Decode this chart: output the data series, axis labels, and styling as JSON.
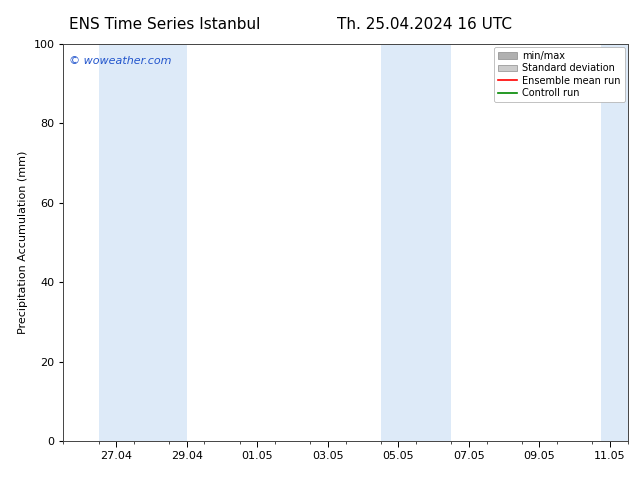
{
  "title_left": "ENS Time Series Istanbul",
  "title_right": "Th. 25.04.2024 16 UTC",
  "ylabel": "Precipitation Accumulation (mm)",
  "ylim": [
    0,
    100
  ],
  "yticks": [
    0,
    20,
    40,
    60,
    80,
    100
  ],
  "watermark": "© woweather.com",
  "background_color": "#ffffff",
  "plot_bg_color": "#ffffff",
  "shaded_band_color": "#ddeaf8",
  "legend_items": [
    {
      "label": "min/max",
      "color": "#b0b0b0",
      "style": "bar"
    },
    {
      "label": "Standard deviation",
      "color": "#cccccc",
      "style": "bar"
    },
    {
      "label": "Ensemble mean run",
      "color": "#ff0000",
      "style": "line"
    },
    {
      "label": "Controll run",
      "color": "#008800",
      "style": "line"
    }
  ],
  "x_tick_labels": [
    "27.04",
    "29.04",
    "01.05",
    "03.05",
    "05.05",
    "07.05",
    "09.05",
    "11.05"
  ],
  "x_tick_positions": [
    1.5,
    3.5,
    5.5,
    7.5,
    9.5,
    11.5,
    13.5,
    15.5
  ],
  "total_days": 16.0,
  "shaded_regions": [
    {
      "start_day": 1.0,
      "end_day": 3.5
    },
    {
      "start_day": 9.0,
      "end_day": 11.0
    },
    {
      "start_day": 15.25,
      "end_day": 16.0
    }
  ],
  "title_fontsize": 11,
  "tick_fontsize": 8,
  "label_fontsize": 8,
  "watermark_fontsize": 8,
  "legend_fontsize": 7,
  "axis_color": "#444444"
}
